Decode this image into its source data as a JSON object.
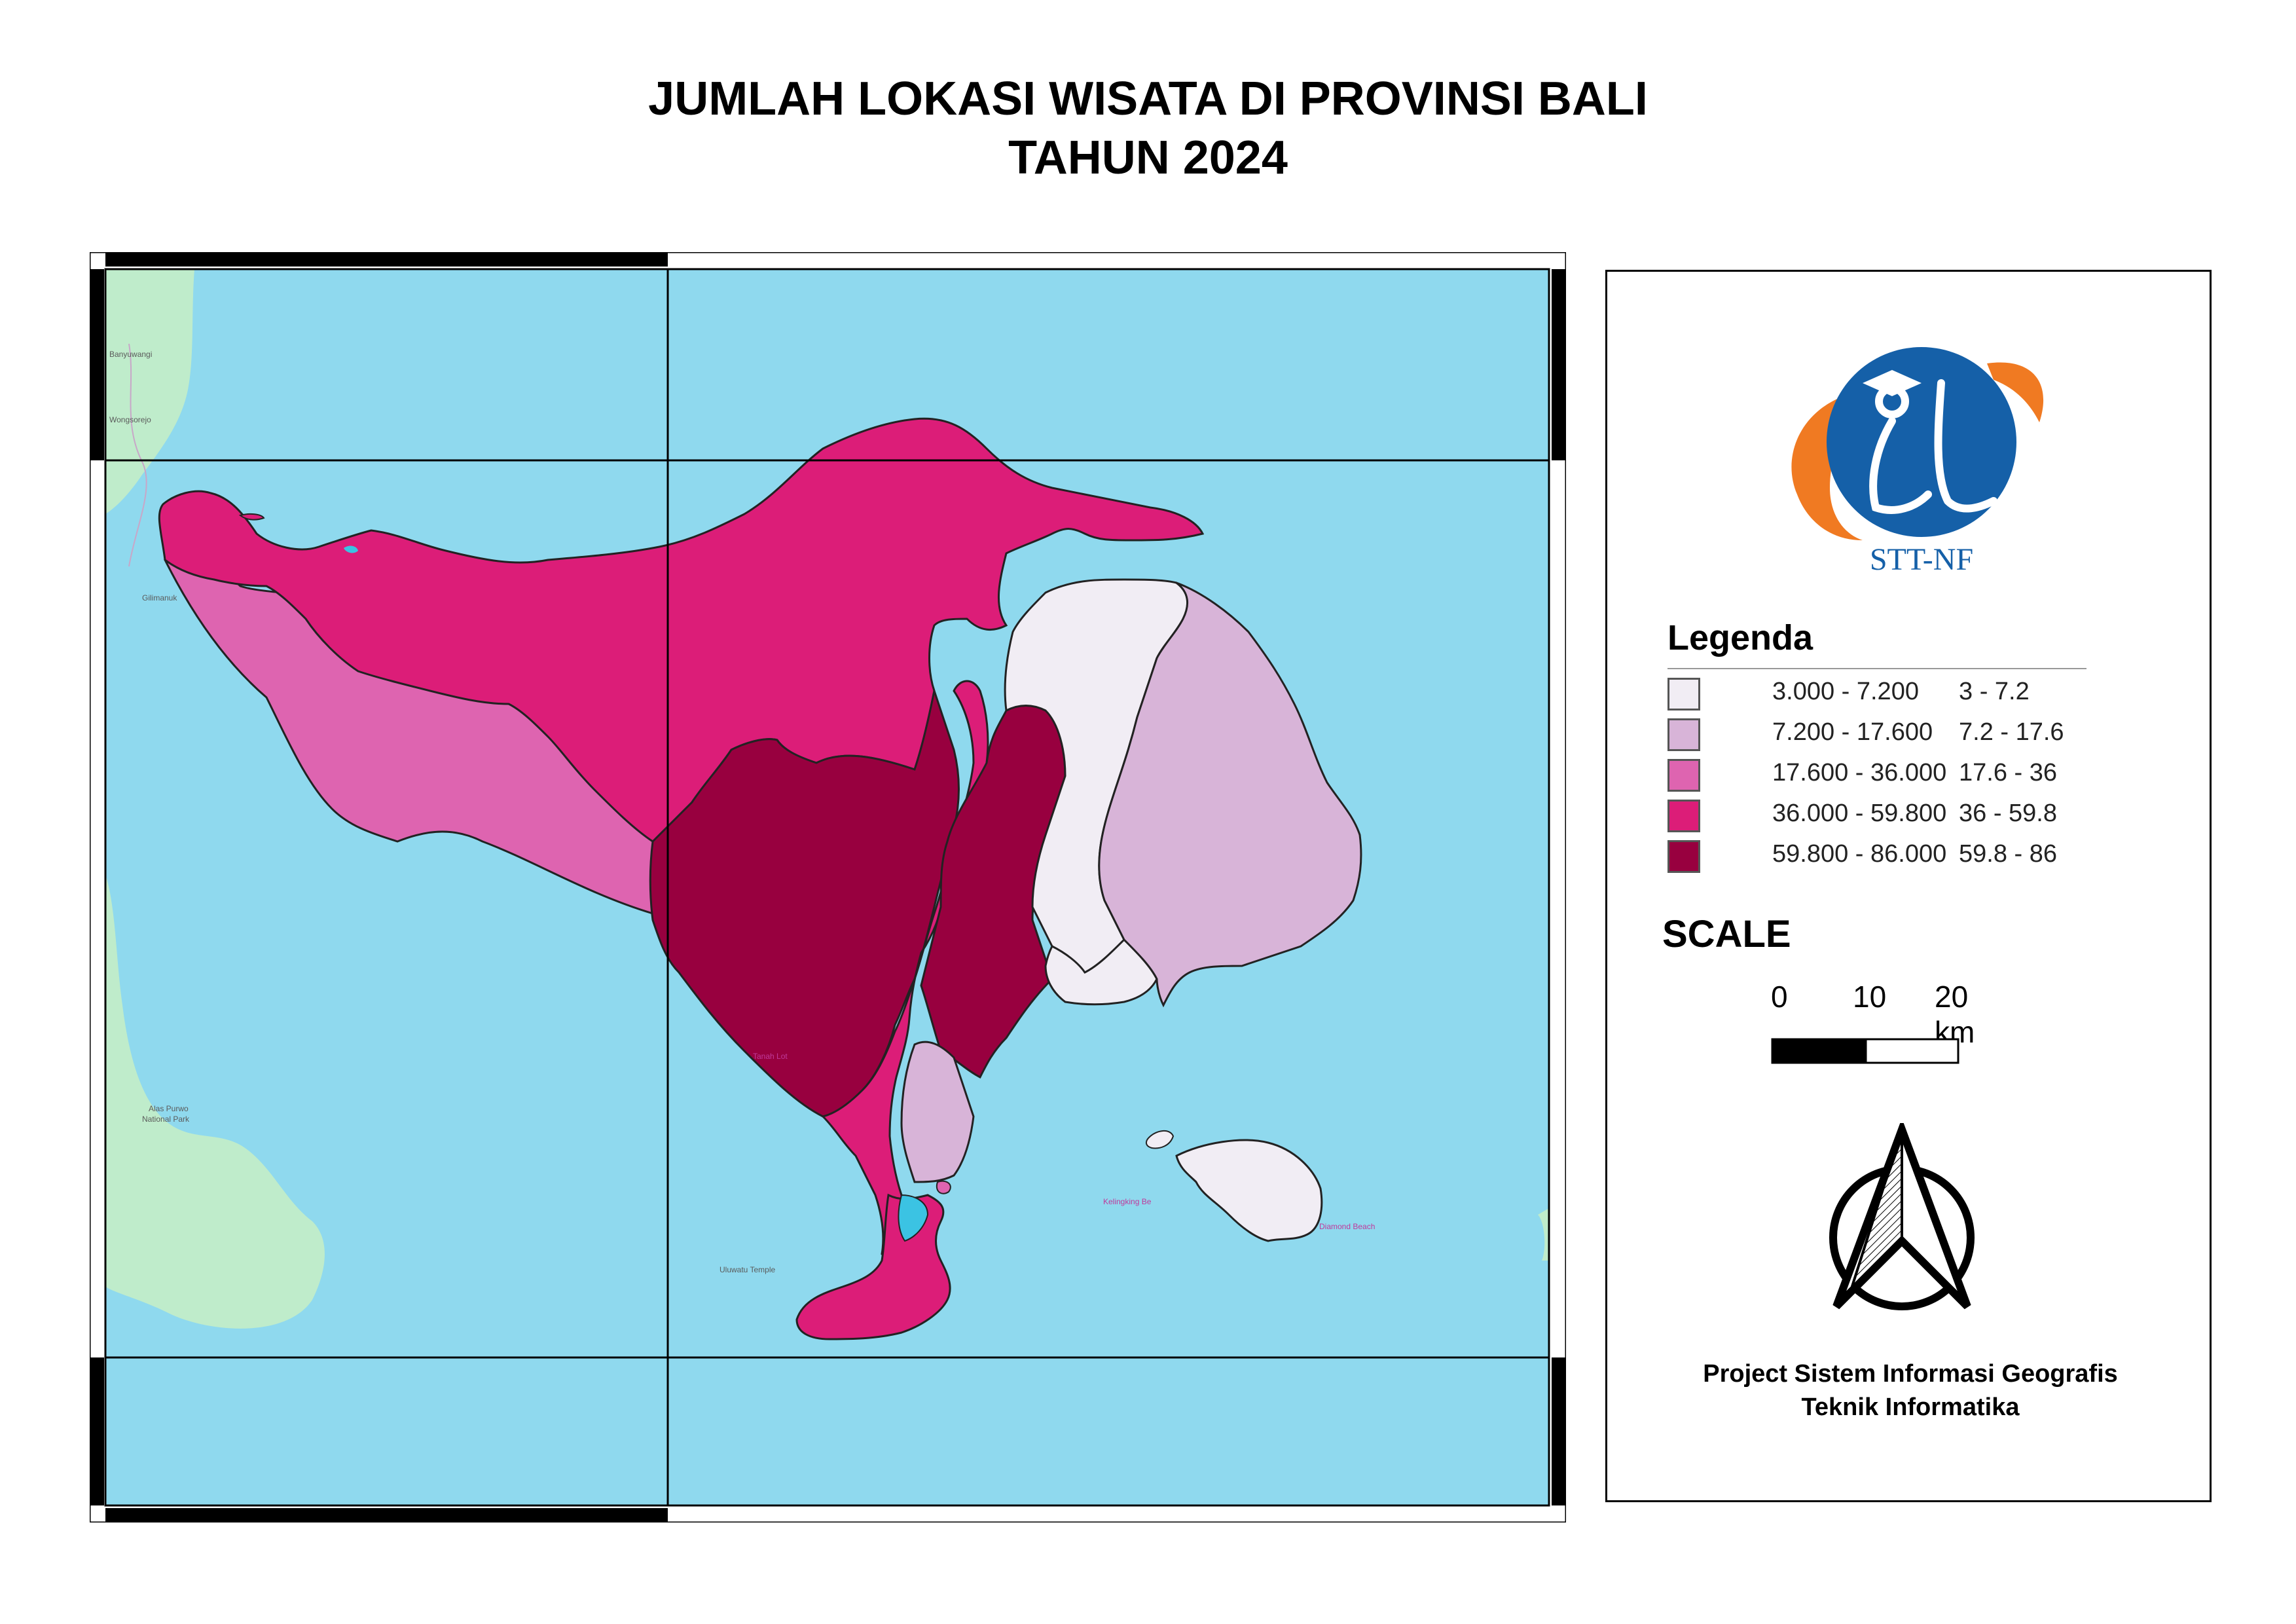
{
  "title_line1": "JUMLAH LOKASI WISATA DI PROVINSI BALI",
  "title_line2": "TAHUN 2024",
  "map": {
    "colors": {
      "sea": "#8fd9ee",
      "land_java": "#bfeccb",
      "class_1": "#f1edf4",
      "class_2": "#d8b4d8",
      "class_3": "#de64b0",
      "class_4": "#dc1d78",
      "class_5": "#98003f",
      "water_inland": "#3bc3e3"
    },
    "place_labels": {
      "jembrana_town": "Gilimanuk",
      "banyuwangi": "Banyuwangi",
      "wongsorejo": "Wongsorejo",
      "tanah_lot": "Tanah Lot",
      "uluwatu": "Uluwatu Temple",
      "kelingking": "Kelingking Be",
      "diamond_beach": "Diamond Beach",
      "alas_purwo_1": "Alas Purwo",
      "alas_purwo_2": "National Park"
    }
  },
  "logo": {
    "caption": "STT-NF",
    "colors": {
      "blue": "#1560a8",
      "orange": "#f07a22"
    }
  },
  "legend": {
    "heading": "Legenda",
    "items": [
      {
        "range": "3.000 - 7.200",
        "short": "3 - 7.2",
        "color": "#f1edf4"
      },
      {
        "range": "7.200 - 17.600",
        "short": "7.2 - 17.6",
        "color": "#d8b4d8"
      },
      {
        "range": "17.600 - 36.000",
        "short": "17.6 - 36",
        "color": "#de64b0"
      },
      {
        "range": "36.000 - 59.800",
        "short": "36 - 59.8",
        "color": "#dc1d78"
      },
      {
        "range": "59.800 - 86.000",
        "short": "59.8 - 86",
        "color": "#98003f"
      }
    ]
  },
  "scale": {
    "heading": "SCALE",
    "ticks": [
      "0",
      "10",
      "20 km"
    ]
  },
  "footer": {
    "line1": "Project Sistem Informasi Geografis",
    "line2": "Teknik Informatika"
  }
}
